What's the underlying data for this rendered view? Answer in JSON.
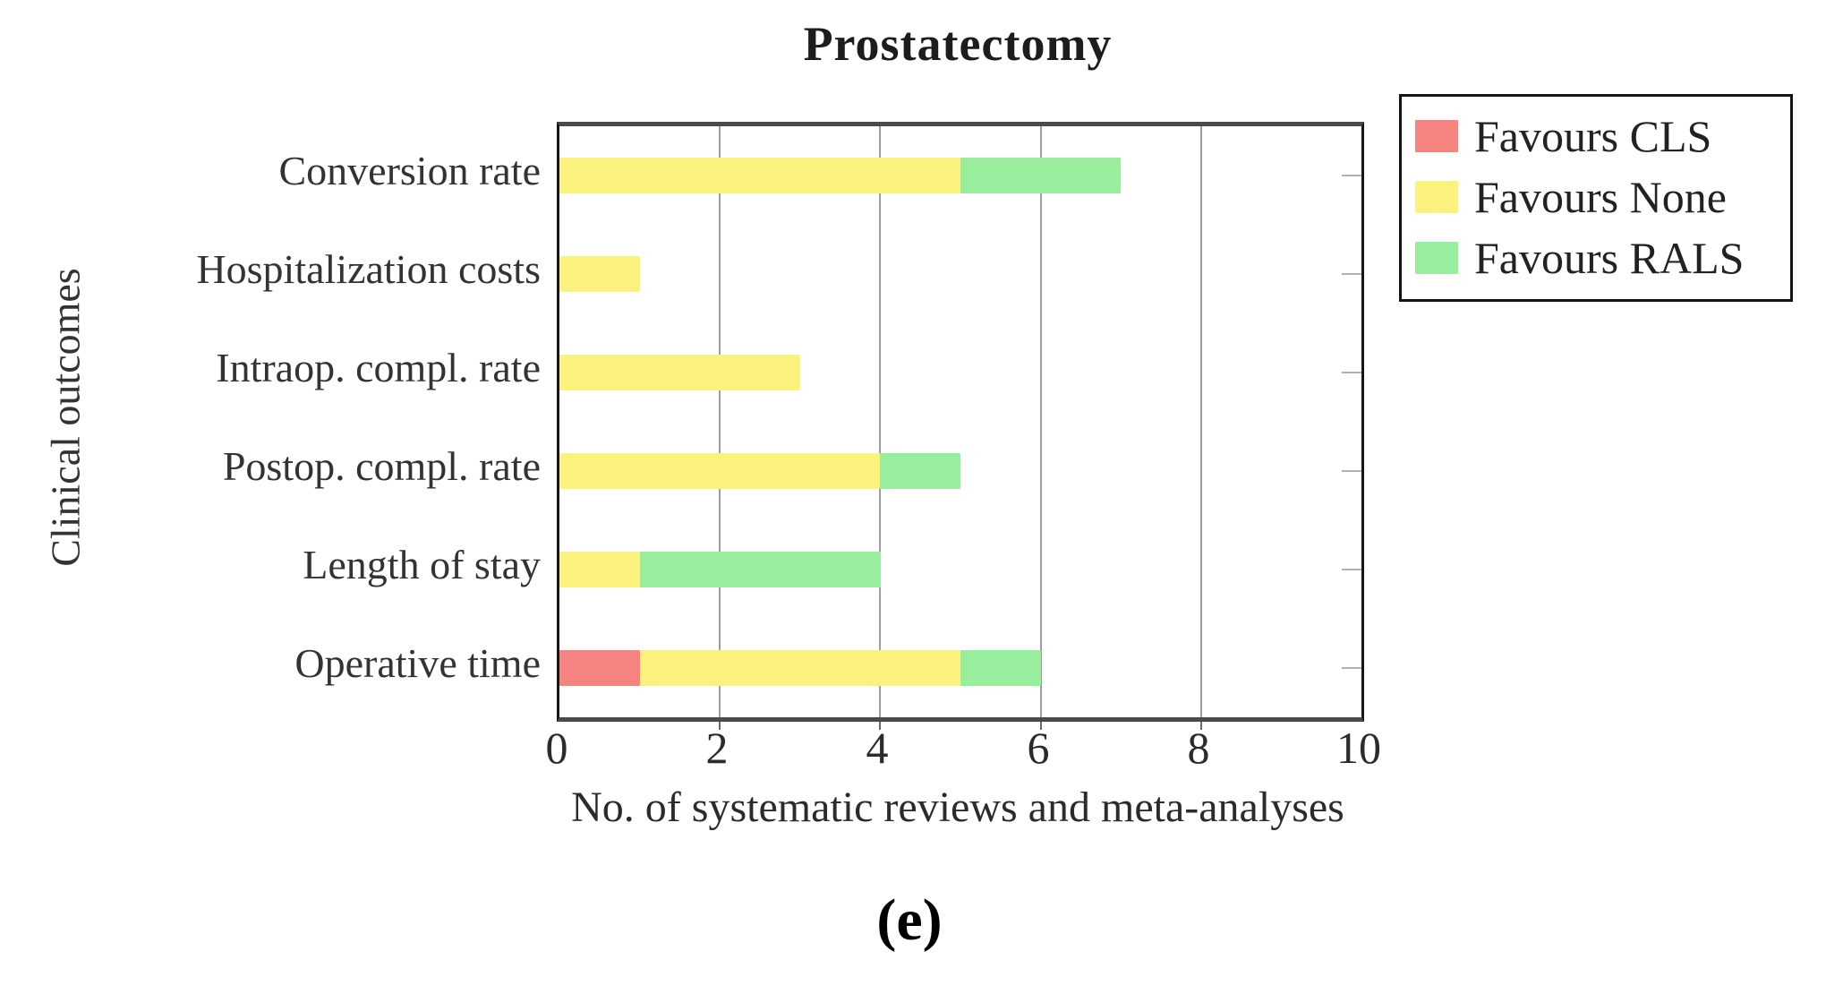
{
  "caption": "(e)",
  "chart_data": {
    "type": "bar",
    "orientation": "horizontal",
    "stacked": true,
    "title": "Prostatectomy",
    "xlabel": "No. of systematic reviews and meta-analyses",
    "ylabel": "Clinical outcomes",
    "xlim": [
      0,
      10
    ],
    "xticks": [
      0,
      2,
      4,
      6,
      8,
      10
    ],
    "grid": true,
    "legend_position": "outside-top-right",
    "categories": [
      "Conversion rate",
      "Hospitalization costs",
      "Intraop. compl. rate",
      "Postop. compl. rate",
      "Length of stay",
      "Operative time"
    ],
    "series": [
      {
        "name": "Favours CLS",
        "color": "#f5837f",
        "values": [
          0,
          0,
          0,
          0,
          0,
          1
        ]
      },
      {
        "name": "Favours None",
        "color": "#fbf37d",
        "values": [
          5,
          1,
          3,
          4,
          1,
          4
        ]
      },
      {
        "name": "Favours RALS",
        "color": "#98ee9c",
        "values": [
          2,
          0,
          0,
          1,
          3,
          1
        ]
      }
    ]
  }
}
